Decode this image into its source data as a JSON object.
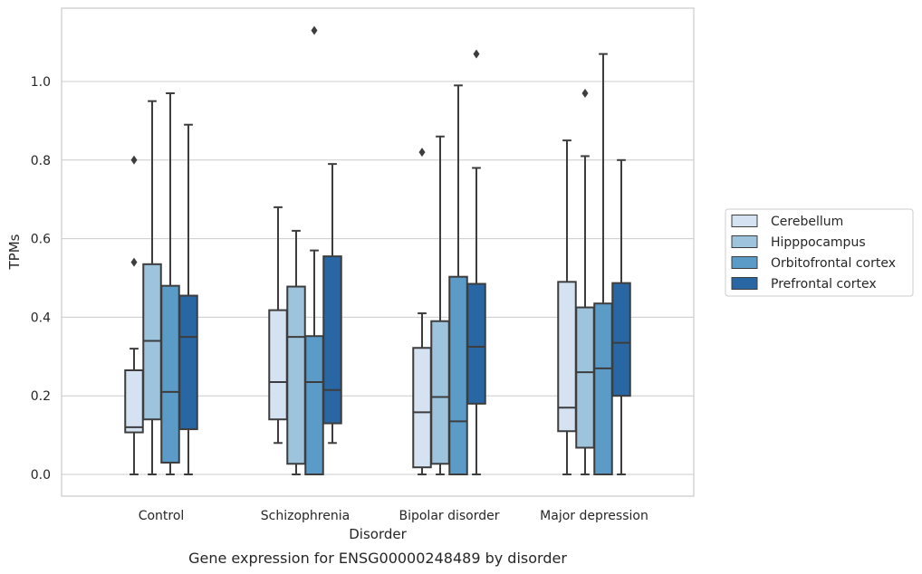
{
  "chart_data": {
    "type": "boxplot",
    "caption": "Gene expression for ENSG00000248489 by disorder",
    "xlabel": "Disorder",
    "ylabel": "TPMs",
    "ylim": [
      -0.055,
      1.19
    ],
    "yticks": [
      0.0,
      0.2,
      0.4,
      0.6,
      0.8,
      1.0
    ],
    "ytick_labels": [
      "0.0",
      "0.2",
      "0.4",
      "0.6",
      "0.8",
      "1.0"
    ],
    "grid": true,
    "legend_position": "right, outside plot",
    "categories": [
      "Control",
      "Schizophrenia",
      "Bipolar disorder",
      "Major depression"
    ],
    "series": [
      {
        "name": "Cerebellum",
        "color": "#d4e2f1",
        "boxes": [
          {
            "whislo": 0.0,
            "q1": 0.107,
            "med": 0.12,
            "q3": 0.265,
            "whishi": 0.32,
            "fliers": [
              0.54,
              0.8
            ]
          },
          {
            "whislo": 0.08,
            "q1": 0.14,
            "med": 0.235,
            "q3": 0.418,
            "whishi": 0.68,
            "fliers": []
          },
          {
            "whislo": 0.0,
            "q1": 0.018,
            "med": 0.158,
            "q3": 0.322,
            "whishi": 0.41,
            "fliers": [
              0.82
            ]
          },
          {
            "whislo": 0.0,
            "q1": 0.11,
            "med": 0.17,
            "q3": 0.49,
            "whishi": 0.85,
            "fliers": []
          }
        ]
      },
      {
        "name": "Hipppocampus",
        "color": "#9dc3dd",
        "boxes": [
          {
            "whislo": 0.0,
            "q1": 0.14,
            "med": 0.34,
            "q3": 0.535,
            "whishi": 0.95,
            "fliers": []
          },
          {
            "whislo": 0.0,
            "q1": 0.027,
            "med": 0.35,
            "q3": 0.478,
            "whishi": 0.62,
            "fliers": []
          },
          {
            "whislo": 0.0,
            "q1": 0.027,
            "med": 0.197,
            "q3": 0.39,
            "whishi": 0.86,
            "fliers": []
          },
          {
            "whislo": 0.0,
            "q1": 0.068,
            "med": 0.26,
            "q3": 0.425,
            "whishi": 0.81,
            "fliers": [
              0.97
            ]
          }
        ]
      },
      {
        "name": "Orbitofrontal cortex",
        "color": "#5a9bc8",
        "boxes": [
          {
            "whislo": 0.0,
            "q1": 0.03,
            "med": 0.21,
            "q3": 0.48,
            "whishi": 0.97,
            "fliers": []
          },
          {
            "whislo": 0.0,
            "q1": 0.0,
            "med": 0.235,
            "q3": 0.352,
            "whishi": 0.57,
            "fliers": [
              1.13
            ]
          },
          {
            "whislo": 0.0,
            "q1": 0.0,
            "med": 0.135,
            "q3": 0.503,
            "whishi": 0.99,
            "fliers": []
          },
          {
            "whislo": 0.0,
            "q1": 0.0,
            "med": 0.27,
            "q3": 0.435,
            "whishi": 1.07,
            "fliers": []
          }
        ]
      },
      {
        "name": "Prefrontal cortex",
        "color": "#2966a4",
        "boxes": [
          {
            "whislo": 0.0,
            "q1": 0.115,
            "med": 0.35,
            "q3": 0.455,
            "whishi": 0.89,
            "fliers": []
          },
          {
            "whislo": 0.08,
            "q1": 0.13,
            "med": 0.215,
            "q3": 0.555,
            "whishi": 0.79,
            "fliers": []
          },
          {
            "whislo": 0.0,
            "q1": 0.18,
            "med": 0.325,
            "q3": 0.485,
            "whishi": 0.78,
            "fliers": [
              1.07
            ]
          },
          {
            "whislo": 0.0,
            "q1": 0.2,
            "med": 0.335,
            "q3": 0.487,
            "whishi": 0.8,
            "fliers": []
          }
        ]
      }
    ],
    "colors": {
      "grid": "#cccccc",
      "frame": "#cccccc",
      "box_edge": "#3d3d3d",
      "text": "#262626"
    }
  }
}
